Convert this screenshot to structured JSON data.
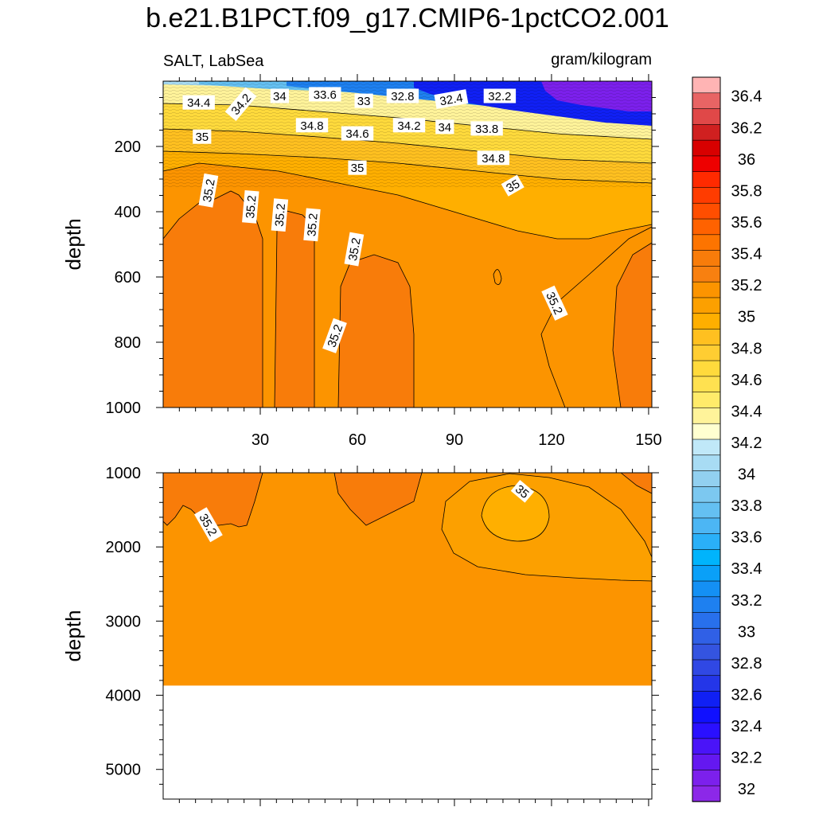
{
  "chart_data": {
    "type": "contour",
    "title": "b.e21.B1PCT.f09_g17.CMIP6-1pctCO2.001",
    "variable_label": "SALT, LabSea",
    "units_label": "gram/kilogram",
    "upper_panel": {
      "ylabel": "depth",
      "ylim": [
        0,
        1000
      ],
      "yticks": [
        200,
        400,
        600,
        800,
        1000
      ],
      "xlim": [
        0,
        151
      ],
      "xticks": [
        30,
        60,
        90,
        120,
        150
      ],
      "contour_labels": [
        {
          "text": "34.4",
          "x": 11,
          "depth": 65,
          "rot": 0
        },
        {
          "text": "34.2",
          "x": 24,
          "depth": 70,
          "rot": -50
        },
        {
          "text": "34",
          "x": 36,
          "depth": 45,
          "rot": 0
        },
        {
          "text": "33.6",
          "x": 50,
          "depth": 40,
          "rot": 0
        },
        {
          "text": "33",
          "x": 62,
          "depth": 60,
          "rot": 0
        },
        {
          "text": "32.8",
          "x": 74,
          "depth": 45,
          "rot": 0
        },
        {
          "text": "32.4",
          "x": 89,
          "depth": 55,
          "rot": -10
        },
        {
          "text": "32.2",
          "x": 104,
          "depth": 45,
          "rot": 0
        },
        {
          "text": "34.8",
          "x": 46,
          "depth": 135,
          "rot": 0
        },
        {
          "text": "34.6",
          "x": 60,
          "depth": 160,
          "rot": 0
        },
        {
          "text": "34.2",
          "x": 76,
          "depth": 135,
          "rot": 0
        },
        {
          "text": "34",
          "x": 87,
          "depth": 140,
          "rot": 0
        },
        {
          "text": "33.8",
          "x": 100,
          "depth": 145,
          "rot": 0
        },
        {
          "text": "35",
          "x": 12,
          "depth": 170,
          "rot": 0
        },
        {
          "text": "35",
          "x": 60,
          "depth": 265,
          "rot": 0
        },
        {
          "text": "34.8",
          "x": 102,
          "depth": 235,
          "rot": 0
        },
        {
          "text": "35",
          "x": 108,
          "depth": 320,
          "rot": -30
        },
        {
          "text": "35.2",
          "x": 14,
          "depth": 335,
          "rot": -80
        },
        {
          "text": "35.2",
          "x": 27,
          "depth": 385,
          "rot": -85
        },
        {
          "text": "35.2",
          "x": 36,
          "depth": 410,
          "rot": -85
        },
        {
          "text": "35.2",
          "x": 46,
          "depth": 440,
          "rot": -85
        },
        {
          "text": "35.2",
          "x": 59,
          "depth": 515,
          "rot": -80
        },
        {
          "text": "35.2",
          "x": 121,
          "depth": 680,
          "rot": 65
        },
        {
          "text": "35.2",
          "x": 53,
          "depth": 780,
          "rot": -70
        }
      ]
    },
    "lower_panel": {
      "ylabel": "depth",
      "ylim": [
        1000,
        5400
      ],
      "yticks": [
        1000,
        2000,
        3000,
        4000,
        5000
      ],
      "xlim": [
        0,
        151
      ],
      "bottom_depth": 3870,
      "contour_labels": [
        {
          "text": "35.2",
          "x": 14,
          "depth": 1700,
          "rot": 60
        },
        {
          "text": "35",
          "x": 111,
          "depth": 1250,
          "rot": 40
        }
      ]
    },
    "colorbar": {
      "levels": [
        "36.4",
        "36.2",
        "36",
        "35.8",
        "35.6",
        "35.4",
        "35.2",
        "35",
        "34.8",
        "34.6",
        "34.4",
        "34.2",
        "34",
        "33.8",
        "33.6",
        "33.4",
        "33.2",
        "33",
        "32.8",
        "32.6",
        "32.4",
        "32.2",
        "32"
      ],
      "colors": [
        "#ffb4b4",
        "#e86464",
        "#e04848",
        "#d02020",
        "#d80000",
        "#ee0000",
        "#ff2a00",
        "#ff3c00",
        "#ff4e00",
        "#ff6200",
        "#fd7400",
        "#f87c0a",
        "#f88010",
        "#fc9400",
        "#fca000",
        "#ffaf00",
        "#ffc020",
        "#ffcd32",
        "#ffda3c",
        "#ffe150",
        "#ffeb6a",
        "#fff39a",
        "#ffffd0",
        "#c0e8f8",
        "#a8dcf4",
        "#92d0f0",
        "#7cc8f0",
        "#64c0f2",
        "#4cb6f4",
        "#2ab0f8",
        "#00b4fc",
        "#0aa0f8",
        "#1490f4",
        "#1e80f0",
        "#2870ec",
        "#3060e6",
        "#3454e0",
        "#3048e4",
        "#2436e8",
        "#1020f4",
        "#1010ff",
        "#2a10ff",
        "#4a14f8",
        "#6418f0",
        "#7c20ec",
        "#8c28e8"
      ]
    }
  }
}
